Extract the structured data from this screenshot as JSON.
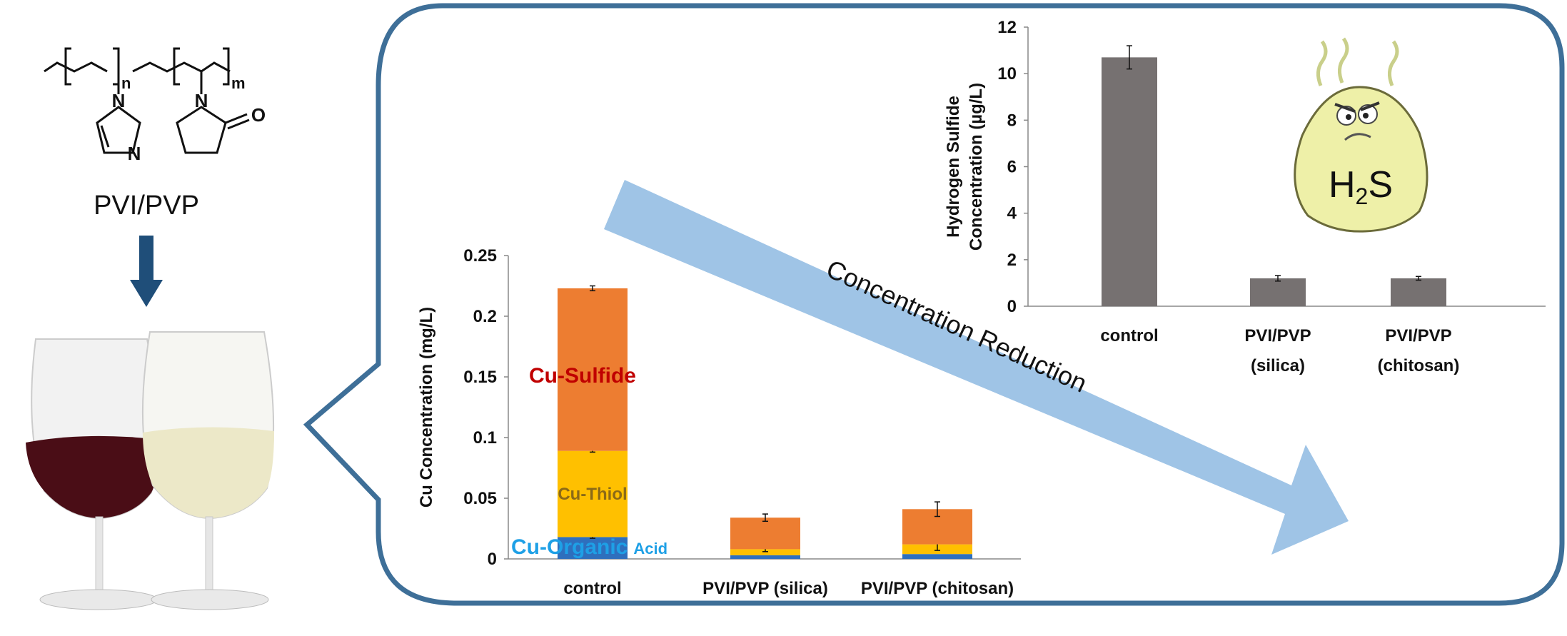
{
  "structure": {
    "polymer_label": "PVI/PVP",
    "subscript_n": "n",
    "subscript_m": "m",
    "atom_N": "N",
    "atom_O": "O"
  },
  "arrow_label": "Concentration Reduction",
  "colors": {
    "callout_border": "#3e6f98",
    "big_arrow": "#9fc4e6",
    "down_arrow": "#1f4e79",
    "sulfide": "#ed7d31",
    "thiol": "#ffc000",
    "organic_acid": "#2e6fbd",
    "h2s_bar": "#767171",
    "label_sulfide": "#c00000",
    "label_thiol": "#8b6a17",
    "label_organic": "#1ea0e6",
    "egg": "#eef0a8"
  },
  "h2s_icon_label": {
    "main": "H",
    "sub": "2",
    "tail": "S"
  },
  "chart_data": [
    {
      "type": "bar",
      "stacked": true,
      "ylabel": "Cu Concentration (mg/L)",
      "ylim": [
        0,
        0.25
      ],
      "yticks": [
        "0",
        "0.05",
        "0.1",
        "0.15",
        "0.2",
        "0.25"
      ],
      "categories": [
        "control",
        "PVI/PVP (silica)",
        "PVI/PVP (chitosan)"
      ],
      "series": [
        {
          "name": "Cu-Organic Acid",
          "label_part1": "Cu-Organic",
          "label_part2": "Acid",
          "values": [
            0.018,
            0.003,
            0.004
          ],
          "errors": [
            0.001,
            0.0,
            0.0
          ]
        },
        {
          "name": "Cu-Thiol",
          "values": [
            0.071,
            0.005,
            0.008
          ],
          "errors": [
            0.001,
            0.002,
            0.005
          ]
        },
        {
          "name": "Cu-Sulfide",
          "values": [
            0.134,
            0.026,
            0.029
          ],
          "errors": [
            0.002,
            0.003,
            0.006
          ]
        }
      ]
    },
    {
      "type": "bar",
      "ylabel_line1": "Hydrogen Sulfide",
      "ylabel_line2": "Concentration (µg/L)",
      "ylim": [
        0,
        12
      ],
      "yticks": [
        "0",
        "2",
        "4",
        "6",
        "8",
        "10",
        "12"
      ],
      "categories": [
        {
          "line1": "control",
          "line2": ""
        },
        {
          "line1": "PVI/PVP",
          "line2": "(silica)"
        },
        {
          "line1": "PVI/PVP",
          "line2": "(chitosan)"
        }
      ],
      "values": [
        10.7,
        1.2,
        1.2
      ],
      "errors": [
        0.5,
        0.12,
        0.08
      ]
    }
  ]
}
